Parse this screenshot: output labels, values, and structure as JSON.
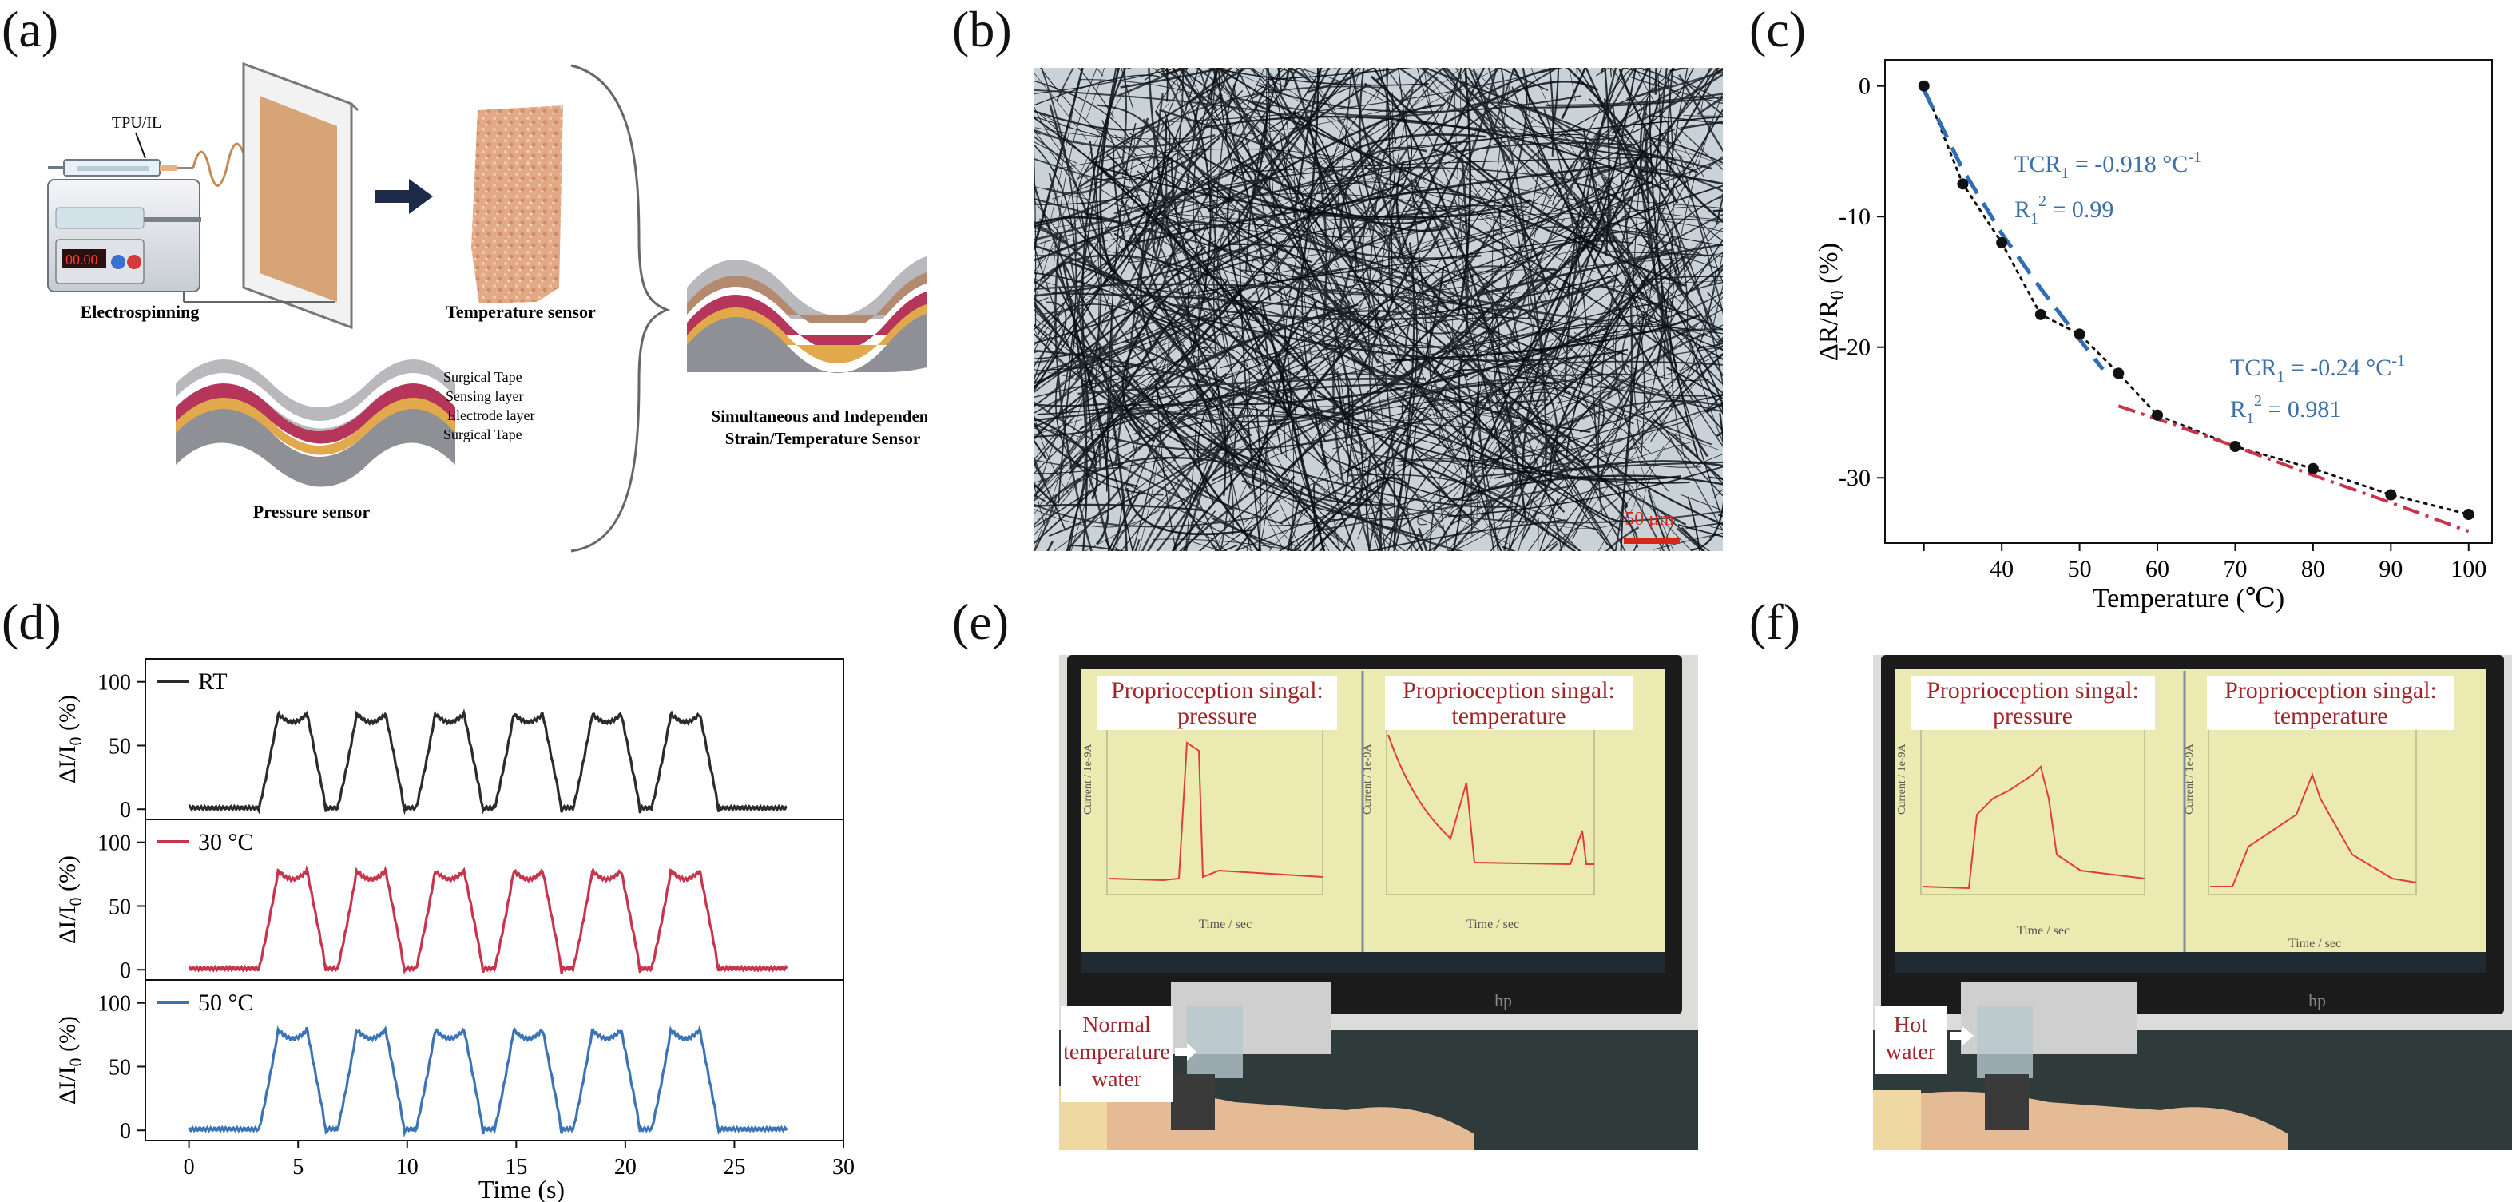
{
  "panels": {
    "a": {
      "label": "(a)",
      "tpu_il": "TPU/IL",
      "lcd": "00.00",
      "electrospinning": "Electrospinning",
      "temperature_sensor": "Temperature sensor",
      "layers": [
        "Surgical Tape",
        "Sensing layer",
        "Electrode layer",
        "Surgical Tape"
      ],
      "pressure_sensor": "Pressure sensor",
      "combined_line1": "Simultaneous and Independent",
      "combined_line2": "Strain/Temperature Sensor"
    },
    "b": {
      "label": "(b)",
      "scale_bar": "50 μm"
    },
    "c": {
      "label": "(c)"
    },
    "d": {
      "label": "(d)"
    },
    "e": {
      "label": "(e)",
      "box_pressure_line1": "Proprioception singal:",
      "box_pressure_line2": "pressure",
      "box_temp_line1": "Proprioception singal:",
      "box_temp_line2": "temperature",
      "water_line1": "Normal",
      "water_line2": "temperature",
      "water_line3": "water",
      "axis_current": "Current / 1e-9A",
      "axis_time": "Time / sec",
      "monitor_brand": "hp"
    },
    "f": {
      "label": "(f)",
      "box_pressure_line1": "Proprioception singal:",
      "box_pressure_line2": "pressure",
      "box_temp_line1": "Proprioception singal:",
      "box_temp_line2": "temperature",
      "water_line1": "Hot",
      "water_line2": "water",
      "axis_current": "Current / 1e-9A",
      "axis_time": "Time / sec",
      "monitor_brand": "hp"
    }
  },
  "chart_data": [
    {
      "panel": "c",
      "type": "scatter",
      "xlabel": "Temperature (℃)",
      "ylabel": "ΔR/R0 (%)",
      "xlim": [
        25,
        103
      ],
      "ylim": [
        -35,
        2
      ],
      "xticks": [
        30,
        40,
        50,
        60,
        70,
        80,
        90,
        100
      ],
      "xtick_labels": [
        "",
        "40",
        "50",
        "60",
        "70",
        "80",
        "90",
        "100"
      ],
      "yticks": [
        0,
        -10,
        -20,
        -30
      ],
      "points": {
        "x": [
          30,
          35,
          40,
          45,
          50,
          55,
          60,
          70,
          80,
          90,
          100
        ],
        "y": [
          0,
          -7.5,
          -12,
          -17.5,
          -19,
          -22,
          -25.2,
          -27.6,
          -29.3,
          -31.3,
          -32.8
        ]
      },
      "fit_low": {
        "x": [
          30,
          35,
          40,
          45,
          50,
          53
        ],
        "y": [
          -0.3,
          -6.4,
          -11.3,
          -15.5,
          -19.4,
          -21.7
        ]
      },
      "fit_high": {
        "x": [
          55,
          60,
          70,
          80,
          90,
          100
        ],
        "y": [
          -24.5,
          -25.5,
          -27.6,
          -29.8,
          -31.9,
          -34.1
        ]
      },
      "legend_position": "none",
      "annotations": [
        {
          "name": "TCR1",
          "text": "TCR",
          "sub": "1",
          "value": " = -0.918 °C",
          "sup": "-1"
        },
        {
          "name": "R2a",
          "text": "R",
          "sub": "1",
          "sup": "2",
          "value": " = 0.99"
        },
        {
          "name": "TCR2",
          "text": "TCR",
          "sub": "1",
          "value": " = -0.24 °C",
          "sup": "-1"
        },
        {
          "name": "R2b",
          "text": "R",
          "sub": "1",
          "sup": "2",
          "value": " = 0.981"
        }
      ],
      "colors": {
        "points": "#111111",
        "fit_low": "#2f6db5",
        "fit_high": "#c8344b",
        "annotation": "#3d6fa8"
      }
    },
    {
      "panel": "d",
      "type": "line",
      "xlabel": "Time (s)",
      "ylabel": "ΔI/I0 (%)",
      "xlim": [
        -2,
        30
      ],
      "ylim": [
        -8,
        118
      ],
      "xticks": [
        0,
        5,
        10,
        15,
        20,
        25,
        30
      ],
      "yticks": [
        0,
        50,
        100
      ],
      "cycle_starts": [
        3.2,
        6.8,
        10.4,
        14.0,
        17.6,
        21.2
      ],
      "series": [
        {
          "name": "RT",
          "color": "#2b2b2b",
          "peak": 76
        },
        {
          "name": "30 °C",
          "color": "#c8344b",
          "peak": 79
        },
        {
          "name": "50 °C",
          "color": "#3b74b6",
          "peak": 80
        }
      ],
      "legend_position": "top-left"
    }
  ]
}
